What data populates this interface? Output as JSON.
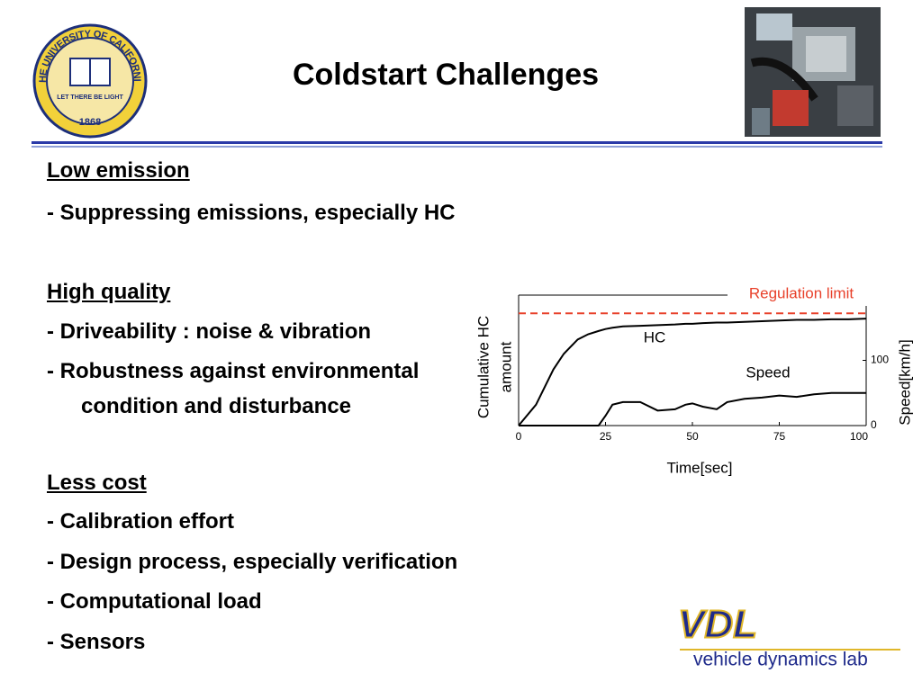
{
  "header": {
    "title": "Coldstart Challenges"
  },
  "seal": {
    "name": "THE UNIVERSITY OF CALIFORNIA",
    "motto": "LET THERE BE LIGHT",
    "year": "1868"
  },
  "sections": [
    {
      "heading": "Low emission",
      "items": [
        [
          "- Suppressing emissions, especially HC"
        ]
      ]
    },
    {
      "heading": "High quality",
      "items": [
        [
          "- Driveability : noise & vibration"
        ],
        [
          "- Robustness against environmental",
          "condition and disturbance"
        ]
      ]
    },
    {
      "heading": "Less cost",
      "items": [
        [
          "- Calibration effort"
        ],
        [
          "- Design process, especially verification"
        ],
        [
          "- Computational load"
        ],
        [
          "- Sensors"
        ]
      ]
    }
  ],
  "logo": {
    "mark": "VDL",
    "text": "vehicle dynamics lab"
  },
  "chart_data": {
    "type": "line",
    "xlabel": "Time[sec]",
    "ylabel": [
      "Cumulative HC",
      "amount"
    ],
    "y2label": "Speed[km/h]",
    "x": [
      0,
      5,
      10,
      13,
      17,
      20,
      23,
      25,
      27,
      30,
      35,
      40,
      45,
      48,
      50,
      53,
      57,
      60,
      65,
      70,
      75,
      80,
      85,
      90,
      95,
      100
    ],
    "xlim": [
      0,
      100
    ],
    "xticks": [
      0,
      25,
      50,
      75,
      100
    ],
    "ylim": [
      0,
      1
    ],
    "y2lim": [
      0,
      200
    ],
    "y2ticks": [
      0,
      100
    ],
    "grid": false,
    "regulation_limit": {
      "label": "Regulation limit",
      "value": 0.86,
      "color": "#e8402a"
    },
    "series": [
      {
        "name": "HC",
        "color": "#000000",
        "values": [
          0,
          0.16,
          0.43,
          0.55,
          0.66,
          0.7,
          0.725,
          0.74,
          0.75,
          0.76,
          0.765,
          0.77,
          0.775,
          0.78,
          0.78,
          0.785,
          0.79,
          0.79,
          0.795,
          0.8,
          0.805,
          0.81,
          0.81,
          0.815,
          0.815,
          0.82
        ]
      },
      {
        "name": "Speed",
        "color": "#000000",
        "axis": "y2",
        "values": [
          0,
          0,
          0,
          0,
          0,
          0,
          0,
          15,
          32,
          36,
          36,
          23,
          25,
          32,
          34,
          29,
          25,
          36,
          41,
          43,
          46,
          44,
          48,
          50,
          50,
          50
        ]
      }
    ]
  }
}
